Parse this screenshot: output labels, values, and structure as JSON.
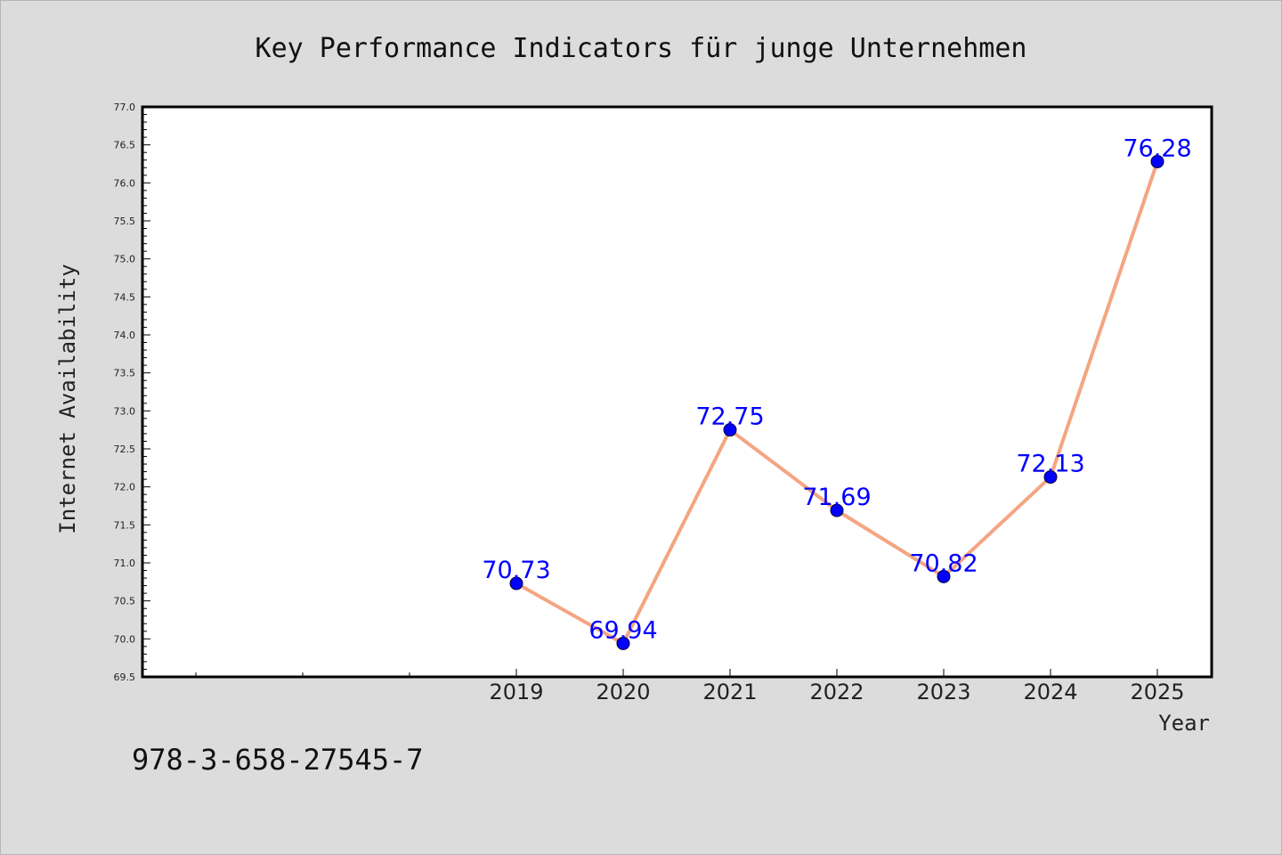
{
  "chart_data": {
    "type": "line",
    "title": "Key Performance Indicators für junge Unternehmen",
    "xlabel": "Year",
    "ylabel": "Internet Availability",
    "categories": [
      "2019",
      "2020",
      "2021",
      "2022",
      "2023",
      "2024",
      "2025"
    ],
    "series": [
      {
        "values": [
          70.73,
          69.94,
          72.75,
          71.69,
          70.82,
          72.13,
          76.28
        ]
      }
    ],
    "data_labels": [
      "70.73",
      "69.94",
      "72.75",
      "71.69",
      "70.82",
      "72.13",
      "76.28"
    ],
    "ylim": [
      69.5,
      77.0
    ],
    "yticks": [
      "69.5",
      "70.0",
      "70.5",
      "71.0",
      "71.5",
      "72.0",
      "72.5",
      "73.0",
      "73.5",
      "74.0",
      "74.5",
      "75.0",
      "75.5",
      "76.0",
      "76.5",
      "77.0"
    ],
    "grid": false,
    "legend": "none",
    "line_color": "#f4a582",
    "marker_color": "#0000ff",
    "label_color": "#0000ff"
  },
  "footer": {
    "code": "978-3-658-27545-7"
  }
}
